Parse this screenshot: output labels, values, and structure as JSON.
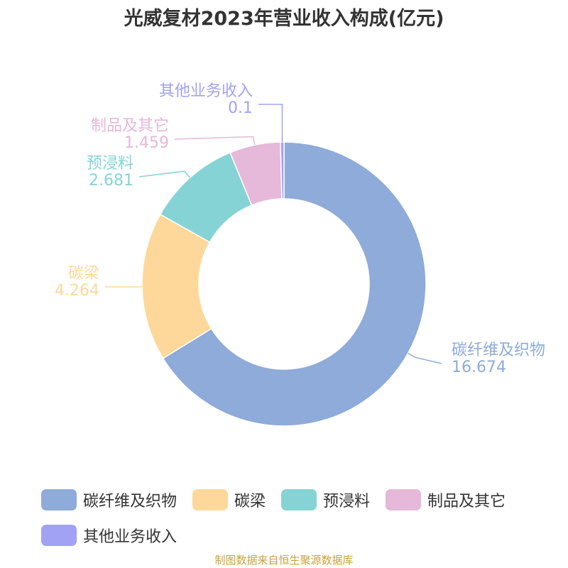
{
  "chart_data": {
    "type": "pie",
    "title": "光威复材2023年营业收入构成(亿元)",
    "donut": true,
    "legend_position": "bottom",
    "slices": [
      {
        "label": "碳纤维及织物",
        "value": 16.674,
        "value_text": "16.674",
        "color": "#8eabd9"
      },
      {
        "label": "碳梁",
        "value": 4.264,
        "value_text": "4.264",
        "color": "#fed89a"
      },
      {
        "label": "预浸料",
        "value": 2.681,
        "value_text": "2.681",
        "color": "#86d3d5"
      },
      {
        "label": "制品及其它",
        "value": 1.459,
        "value_text": "1.459",
        "color": "#e6b8d9"
      },
      {
        "label": "其他业务收入",
        "value": 0.1,
        "value_text": "0.1",
        "color": "#a2a2f5"
      }
    ]
  },
  "source_note": "制图数据来自恒生聚源数据库"
}
